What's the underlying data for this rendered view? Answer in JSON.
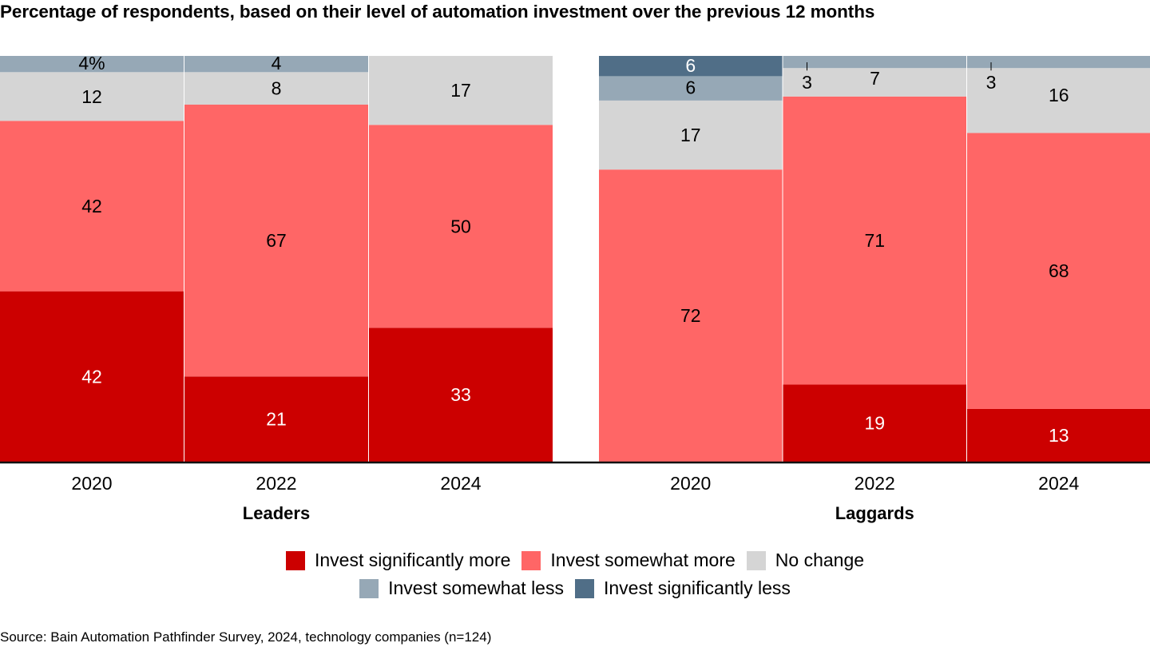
{
  "title": "Percentage of respondents, based on their level of automation investment over the previous 12 months",
  "source": "Source: Bain Automation Pathfinder Survey, 2024, technology companies (n=124)",
  "chart_data": {
    "type": "bar",
    "stacked": true,
    "title": "Percentage of respondents, based on their level of automation investment over the previous 12 months",
    "xlabel": "",
    "ylabel": "",
    "ylim": [
      0,
      100
    ],
    "grid": false,
    "groups": [
      {
        "name": "Leaders",
        "categories": [
          "2020",
          "2022",
          "2024"
        ]
      },
      {
        "name": "Laggards",
        "categories": [
          "2020",
          "2022",
          "2024"
        ]
      }
    ],
    "series": [
      {
        "name": "Invest significantly more",
        "color": "#cc0000",
        "label_color": "#ffffff",
        "values": {
          "Leaders": [
            42,
            21,
            33
          ],
          "Laggards": [
            0,
            19,
            13
          ]
        }
      },
      {
        "name": "Invest somewhat more",
        "color": "#ff6666",
        "label_color": "#000000",
        "values": {
          "Leaders": [
            42,
            67,
            50
          ],
          "Laggards": [
            72,
            71,
            68
          ]
        }
      },
      {
        "name": "No change",
        "color": "#d5d5d5",
        "label_color": "#000000",
        "values": {
          "Leaders": [
            12,
            8,
            17
          ],
          "Laggards": [
            17,
            7,
            16
          ]
        }
      },
      {
        "name": "Invest somewhat less",
        "color": "#96a8b6",
        "label_color": "#000000",
        "values": {
          "Leaders": [
            4,
            4,
            0
          ],
          "Laggards": [
            6,
            3,
            3
          ]
        }
      },
      {
        "name": "Invest significantly less",
        "color": "#506e87",
        "label_color": "#ffffff",
        "values": {
          "Leaders": [
            0,
            0,
            0
          ],
          "Laggards": [
            6,
            0,
            0
          ]
        }
      }
    ],
    "data_labels": {
      "Leaders": [
        [
          "42",
          "42",
          "12",
          "4%",
          ""
        ],
        [
          "21",
          "67",
          "8",
          "4",
          ""
        ],
        [
          "33",
          "50",
          "17",
          "",
          ""
        ]
      ],
      "Laggards": [
        [
          "",
          "72",
          "17",
          "6",
          "6"
        ],
        [
          "19",
          "71",
          "7",
          "3",
          ""
        ],
        [
          "13",
          "68",
          "16",
          "3",
          ""
        ]
      ]
    },
    "legend": {
      "position": "bottom-center",
      "rows": [
        [
          "Invest significantly more",
          "Invest somewhat more",
          "No change"
        ],
        [
          "Invest somewhat less",
          "Invest significantly less"
        ]
      ]
    }
  }
}
